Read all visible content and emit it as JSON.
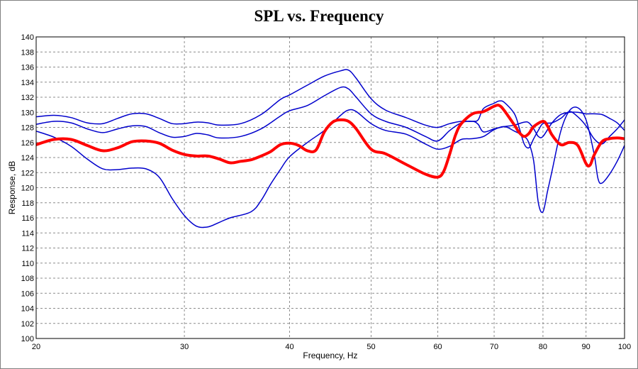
{
  "chart_data": {
    "type": "line",
    "title": "SPL vs. Frequency",
    "xlabel": "Frequency, Hz",
    "ylabel": "Response, dB",
    "xscale": "log",
    "xlim": [
      20,
      100
    ],
    "ylim": [
      100,
      140
    ],
    "x_ticks": [
      20,
      30,
      40,
      50,
      60,
      70,
      80,
      90,
      100
    ],
    "y_ticks": [
      100,
      102,
      104,
      106,
      108,
      110,
      112,
      114,
      116,
      118,
      120,
      122,
      124,
      126,
      128,
      130,
      132,
      134,
      136,
      138,
      140
    ],
    "grid": true,
    "series": [
      {
        "color": "#0000cc",
        "width": 1.5,
        "points": [
          [
            20,
            128.4
          ],
          [
            21,
            128.8
          ],
          [
            22,
            128.6
          ],
          [
            23,
            127.8
          ],
          [
            24,
            127.3
          ],
          [
            25,
            127.8
          ],
          [
            26,
            128.2
          ],
          [
            27,
            128.1
          ],
          [
            28,
            127.3
          ],
          [
            29,
            126.7
          ],
          [
            30,
            126.8
          ],
          [
            31,
            127.2
          ],
          [
            32,
            127.0
          ],
          [
            33,
            126.6
          ],
          [
            35,
            126.8
          ],
          [
            37,
            127.8
          ],
          [
            39,
            129.5
          ],
          [
            40,
            130.2
          ],
          [
            42,
            130.9
          ],
          [
            44,
            132.2
          ],
          [
            46,
            133.3
          ],
          [
            47,
            133.1
          ],
          [
            48,
            132.0
          ],
          [
            50,
            129.8
          ],
          [
            52,
            128.8
          ],
          [
            55,
            128.0
          ],
          [
            58,
            126.8
          ],
          [
            60,
            126.2
          ],
          [
            62,
            127.6
          ],
          [
            64,
            128.6
          ],
          [
            66,
            128.8
          ],
          [
            67,
            128.4
          ],
          [
            68,
            127.4
          ],
          [
            70,
            127.8
          ],
          [
            72,
            128.1
          ],
          [
            74,
            128.3
          ],
          [
            76,
            128.7
          ],
          [
            77,
            128.6
          ],
          [
            78,
            127.8
          ],
          [
            79,
            126.8
          ],
          [
            80,
            126.8
          ],
          [
            82,
            128.6
          ],
          [
            84,
            129.7
          ],
          [
            86,
            130.0
          ],
          [
            88,
            130.0
          ],
          [
            90,
            129.8
          ],
          [
            92,
            129.8
          ],
          [
            94,
            129.7
          ],
          [
            96,
            129.2
          ],
          [
            98,
            128.6
          ],
          [
            100,
            127.6
          ]
        ]
      },
      {
        "color": "#0000cc",
        "width": 1.5,
        "points": [
          [
            20,
            129.4
          ],
          [
            21,
            129.6
          ],
          [
            22,
            129.3
          ],
          [
            23,
            128.6
          ],
          [
            24,
            128.5
          ],
          [
            25,
            129.2
          ],
          [
            26,
            129.8
          ],
          [
            27,
            129.8
          ],
          [
            28,
            129.2
          ],
          [
            29,
            128.5
          ],
          [
            30,
            128.5
          ],
          [
            31,
            128.7
          ],
          [
            32,
            128.6
          ],
          [
            33,
            128.3
          ],
          [
            35,
            128.5
          ],
          [
            37,
            129.7
          ],
          [
            39,
            131.7
          ],
          [
            40,
            132.3
          ],
          [
            42,
            133.6
          ],
          [
            44,
            134.8
          ],
          [
            46,
            135.5
          ],
          [
            47,
            135.6
          ],
          [
            48,
            134.5
          ],
          [
            50,
            131.8
          ],
          [
            52,
            130.3
          ],
          [
            55,
            129.3
          ],
          [
            58,
            128.3
          ],
          [
            60,
            128.0
          ],
          [
            62,
            128.5
          ],
          [
            64,
            128.8
          ],
          [
            66,
            128.8
          ],
          [
            67,
            129.0
          ],
          [
            68,
            130.5
          ],
          [
            70,
            131.2
          ],
          [
            71,
            131.5
          ],
          [
            72,
            131.3
          ],
          [
            74,
            129.8
          ],
          [
            75,
            127.9
          ],
          [
            76,
            125.8
          ],
          [
            77,
            125.3
          ],
          [
            78,
            126.5
          ],
          [
            79,
            127.6
          ],
          [
            80,
            128.5
          ],
          [
            82,
            128.6
          ],
          [
            84,
            129.2
          ],
          [
            86,
            130.1
          ],
          [
            88,
            129.4
          ],
          [
            90,
            128.2
          ],
          [
            92,
            126.5
          ],
          [
            94,
            125.8
          ],
          [
            96,
            126.8
          ],
          [
            98,
            127.8
          ],
          [
            100,
            129.0
          ]
        ]
      },
      {
        "color": "#0000cc",
        "width": 1.5,
        "points": [
          [
            20,
            127.5
          ],
          [
            21,
            126.7
          ],
          [
            22,
            125.5
          ],
          [
            23,
            123.8
          ],
          [
            24,
            122.5
          ],
          [
            25,
            122.4
          ],
          [
            26,
            122.6
          ],
          [
            27,
            122.5
          ],
          [
            28,
            121.4
          ],
          [
            29,
            118.6
          ],
          [
            30,
            116.3
          ],
          [
            31,
            114.9
          ],
          [
            32,
            114.8
          ],
          [
            33,
            115.4
          ],
          [
            34,
            116.0
          ],
          [
            36,
            116.8
          ],
          [
            37,
            118.3
          ],
          [
            38,
            120.5
          ],
          [
            39,
            122.4
          ],
          [
            40,
            124.1
          ],
          [
            42,
            126.0
          ],
          [
            44,
            127.6
          ],
          [
            46,
            129.6
          ],
          [
            47,
            130.3
          ],
          [
            48,
            130.1
          ],
          [
            50,
            128.5
          ],
          [
            52,
            127.6
          ],
          [
            55,
            127.1
          ],
          [
            58,
            125.8
          ],
          [
            60,
            125.1
          ],
          [
            62,
            125.5
          ],
          [
            64,
            126.4
          ],
          [
            66,
            126.5
          ],
          [
            68,
            126.8
          ],
          [
            70,
            127.7
          ],
          [
            72,
            128.1
          ],
          [
            74,
            127.5
          ],
          [
            76,
            126.8
          ],
          [
            77,
            125.9
          ],
          [
            78,
            123.5
          ],
          [
            79,
            118.0
          ],
          [
            80,
            116.8
          ],
          [
            81,
            119.5
          ],
          [
            82,
            122.2
          ],
          [
            84,
            127.5
          ],
          [
            86,
            130.2
          ],
          [
            88,
            130.6
          ],
          [
            90,
            129.0
          ],
          [
            92,
            124.5
          ],
          [
            93,
            121.2
          ],
          [
            94,
            120.6
          ],
          [
            96,
            121.8
          ],
          [
            98,
            123.5
          ],
          [
            100,
            125.6
          ]
        ]
      },
      {
        "color": "#ff0000",
        "width": 4,
        "points": [
          [
            20,
            125.7
          ],
          [
            21,
            126.4
          ],
          [
            22,
            126.4
          ],
          [
            23,
            125.6
          ],
          [
            24,
            124.9
          ],
          [
            25,
            125.3
          ],
          [
            26,
            126.1
          ],
          [
            27,
            126.2
          ],
          [
            28,
            125.9
          ],
          [
            29,
            125.0
          ],
          [
            30,
            124.4
          ],
          [
            31,
            124.2
          ],
          [
            32,
            124.2
          ],
          [
            33,
            123.8
          ],
          [
            34,
            123.3
          ],
          [
            35,
            123.5
          ],
          [
            36,
            123.7
          ],
          [
            37,
            124.2
          ],
          [
            38,
            124.8
          ],
          [
            39,
            125.7
          ],
          [
            40,
            125.9
          ],
          [
            41,
            125.6
          ],
          [
            42,
            124.9
          ],
          [
            43,
            125.0
          ],
          [
            44,
            127.4
          ],
          [
            45,
            128.7
          ],
          [
            46,
            129.0
          ],
          [
            47,
            128.8
          ],
          [
            48,
            127.8
          ],
          [
            50,
            125.1
          ],
          [
            52,
            124.5
          ],
          [
            55,
            123.1
          ],
          [
            58,
            121.8
          ],
          [
            60,
            121.4
          ],
          [
            61,
            122.2
          ],
          [
            62,
            124.5
          ],
          [
            63,
            127.0
          ],
          [
            64,
            128.5
          ],
          [
            66,
            129.8
          ],
          [
            68,
            130.1
          ],
          [
            70,
            130.8
          ],
          [
            71,
            130.9
          ],
          [
            72,
            130.2
          ],
          [
            74,
            128.3
          ],
          [
            75,
            127.3
          ],
          [
            76,
            126.8
          ],
          [
            77,
            127.2
          ],
          [
            78,
            128.1
          ],
          [
            80,
            128.8
          ],
          [
            81,
            128.2
          ],
          [
            82,
            127.0
          ],
          [
            84,
            125.7
          ],
          [
            86,
            126.0
          ],
          [
            88,
            125.6
          ],
          [
            90,
            123.2
          ],
          [
            91,
            123.0
          ],
          [
            92,
            124.3
          ],
          [
            94,
            126.1
          ],
          [
            96,
            126.5
          ],
          [
            98,
            126.6
          ],
          [
            100,
            126.5
          ]
        ]
      }
    ]
  }
}
